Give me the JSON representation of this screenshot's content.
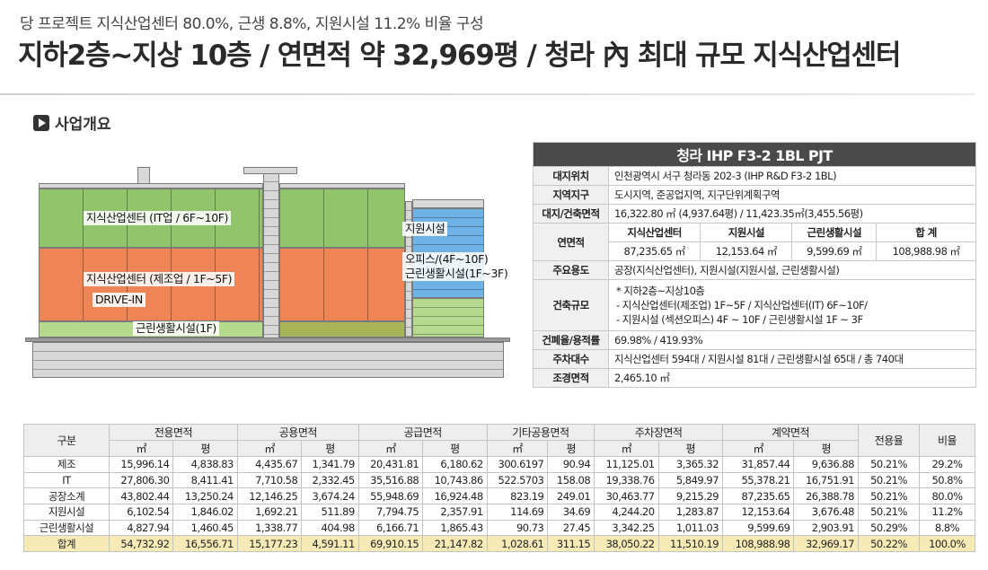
{
  "header": {
    "subtitle": "당 프로젝트 지식산업센터 80.0%, 근생 8.8%, 지원시설 11.2% 비율 구성",
    "title": "지하2층~지상 10층 / 연면적 약 32,969평 / 청라 內 최대 규모 지식산업센터"
  },
  "section": {
    "label": "사업개요",
    "icon": "play-icon"
  },
  "drawing": {
    "labels": {
      "it": "지식산업센터 (IT업 / 6F~10F)",
      "mfg": "지식산업센터 (제조업 / 1F~5F)",
      "drive": "DRIVE-IN",
      "retail": "근린생활시설(1F)",
      "support": "지원시설",
      "office": "오피스/(4F~10F)",
      "retail2": "근린생활시설(1F~3F)"
    },
    "colors": {
      "it": "#92c56b",
      "mfg": "#ef8556",
      "support": "#6fb2e6",
      "retail": "#b5d98e"
    }
  },
  "info": {
    "project": "청라 IHP F3-2 1BL PJT",
    "rows": [
      {
        "k": "대지위치",
        "v": "인천광역시 서구 청라동 202-3 (IHP R&D F3-2 1BL)"
      },
      {
        "k": "지역지구",
        "v": "도시지역, 준공업지역, 지구단위계획구역"
      },
      {
        "k": "대지/건축면적",
        "v": "16,322.80 ㎡ (4,937.64평) / 11,423.35㎡(3,455.56평)"
      }
    ],
    "floor_area": {
      "k": "연면적",
      "headers": [
        "지식산업센터",
        "지원시설",
        "근린생활시설",
        "합 계"
      ],
      "values": [
        "87,235.65 ㎡",
        "12,153.64 ㎡",
        "9,599.69 ㎡",
        "108,988.98 ㎡"
      ]
    },
    "use": {
      "k": "주요용도",
      "v": "공장(지식산업센터), 지원시설(지원시설, 근린생활시설)"
    },
    "scale": {
      "k": "건축규모",
      "lines": [
        "* 지하2층~지상10층",
        "- 지식산업센터(제조업) 1F~5F / 지식산업센터(IT) 6F~10F/",
        "- 지원시설 (섹션오피스) 4F ~ 10F / 근린생활시설 1F ~ 3F"
      ]
    },
    "ratio": {
      "k": "건폐율/용적률",
      "v": "69.98% / 419.93%"
    },
    "parking": {
      "k": "주차대수",
      "v": "지식산업센터 594대 / 지원시설 81대 / 근린생활시설 65대 / 총 740대"
    },
    "landscape": {
      "k": "조경면적",
      "v": "2,465.10 ㎡"
    }
  },
  "area_table": {
    "col_gubun": "구분",
    "groups": [
      "전용면적",
      "공용면적",
      "공급면적",
      "기타공용면적",
      "주차장면적",
      "계약면적"
    ],
    "units": [
      "㎡",
      "평"
    ],
    "col_ratio_use": "전용율",
    "col_ratio": "비율",
    "rows": [
      {
        "name": "제조",
        "vals": [
          "15,996.14",
          "4,838.83",
          "4,435.67",
          "1,341.79",
          "20,431.81",
          "6,180.62",
          "300.6197",
          "90.94",
          "11,125.01",
          "3,365.32",
          "31,857.44",
          "9,636.88",
          "50.21%",
          "29.2%"
        ]
      },
      {
        "name": "IT",
        "vals": [
          "27,806.30",
          "8,411.41",
          "7,710.58",
          "2,332.45",
          "35,516.88",
          "10,743.86",
          "522.5703",
          "158.08",
          "19,338.76",
          "5,849.97",
          "55,378.21",
          "16,751.91",
          "50.21%",
          "50.8%"
        ]
      },
      {
        "name": "공장소계",
        "vals": [
          "43,802.44",
          "13,250.24",
          "12,146.25",
          "3,674.24",
          "55,948.69",
          "16,924.48",
          "823.19",
          "249.01",
          "30,463.77",
          "9,215.29",
          "87,235.65",
          "26,388.78",
          "50.21%",
          "80.0%"
        ]
      },
      {
        "name": "지원시설",
        "vals": [
          "6,102.54",
          "1,846.02",
          "1,692.21",
          "511.89",
          "7,794.75",
          "2,357.91",
          "114.69",
          "34.69",
          "4,244.20",
          "1,283.87",
          "12,153.64",
          "3,676.48",
          "50.21%",
          "11.2%"
        ]
      },
      {
        "name": "근린생활시설",
        "vals": [
          "4,827.94",
          "1,460.45",
          "1,338.77",
          "404.98",
          "6,166.71",
          "1,865.43",
          "90.73",
          "27.45",
          "3,342.25",
          "1,011.03",
          "9,599.69",
          "2,903.91",
          "50.29%",
          "8.8%"
        ]
      }
    ],
    "total": {
      "name": "합계",
      "vals": [
        "54,732.92",
        "16,556.71",
        "15,177.23",
        "4,591.11",
        "69,910.15",
        "21,147.82",
        "1,028.61",
        "311.15",
        "38,050.22",
        "11,510.19",
        "108,988.98",
        "32,969.17",
        "50.22%",
        "100.0%"
      ]
    }
  }
}
